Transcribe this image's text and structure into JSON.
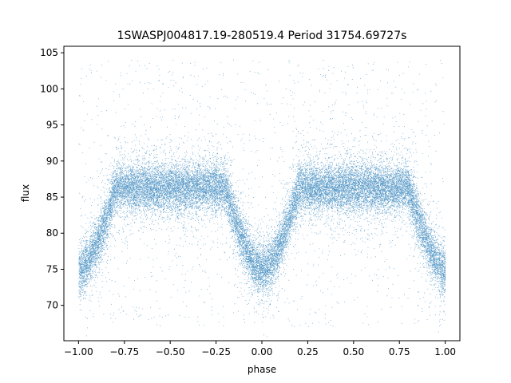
{
  "chart_data": {
    "type": "scatter",
    "title": "1SWASPJ004817.19-280519.4 Period 31754.69727s",
    "xlabel": "phase",
    "ylabel": "flux",
    "xlim": [
      -1.08,
      1.08
    ],
    "ylim": [
      65.1,
      105.9
    ],
    "xticks": [
      -1.0,
      -0.75,
      -0.5,
      -0.25,
      0.0,
      0.25,
      0.5,
      0.75,
      1.0
    ],
    "xtick_labels": [
      "−1.00",
      "−0.75",
      "−0.50",
      "−0.25",
      "0.00",
      "0.25",
      "0.50",
      "0.75",
      "1.00"
    ],
    "yticks": [
      70,
      75,
      80,
      85,
      90,
      95,
      100,
      105
    ],
    "ytick_labels": [
      "70",
      "75",
      "80",
      "85",
      "90",
      "95",
      "100",
      "105"
    ],
    "grid": false,
    "marker_color": "#1f77b4",
    "series": [
      {
        "phase_range": [
          -1.0,
          1.0
        ],
        "baseline_flux": 86.3,
        "baseline_scatter": 1.6,
        "eclipses": [
          {
            "center_phase": -1.0,
            "depth": 11.5,
            "halfwidth": 0.2
          },
          {
            "center_phase": 0.0,
            "depth": 11.5,
            "halfwidth": 0.2
          },
          {
            "center_phase": 1.0,
            "depth": 11.5,
            "halfwidth": 0.2
          }
        ],
        "outlier_range": [
          67,
          104
        ]
      }
    ]
  }
}
